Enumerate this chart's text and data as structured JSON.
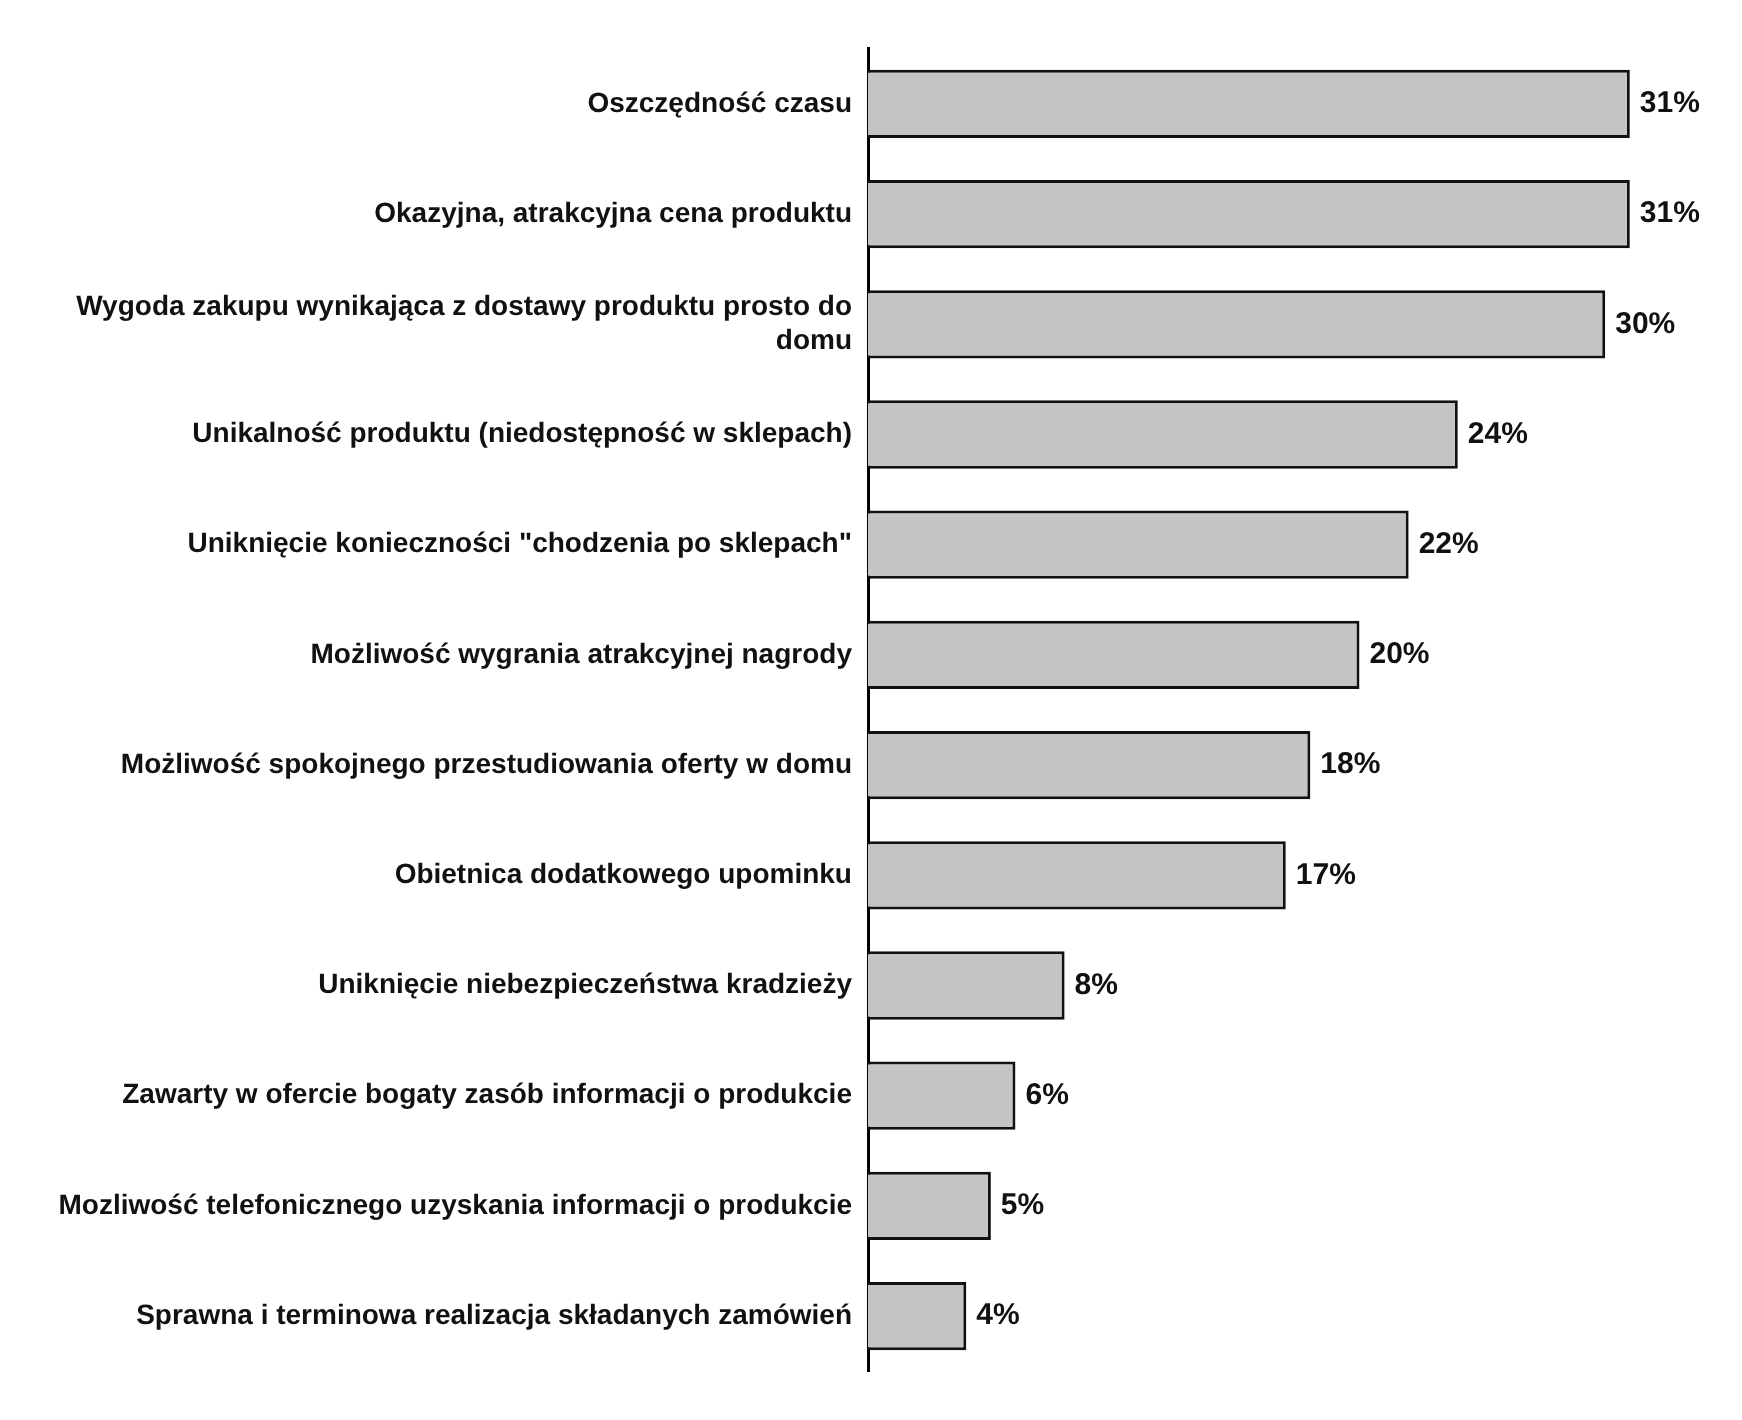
{
  "chart_data": {
    "type": "bar",
    "orientation": "horizontal",
    "categories": [
      "Oszczędność czasu",
      "Okazyjna, atrakcyjna cena produktu",
      "Wygoda zakupu wynikająca z dostawy produktu prosto do domu",
      "Unikalność produktu (niedostępność w sklepach)",
      "Uniknięcie konieczności \"chodzenia po sklepach\"",
      "Możliwość wygrania atrakcyjnej nagrody",
      "Możliwość spokojnego przestudiowania oferty w domu",
      "Obietnica dodatkowego upominku",
      "Uniknięcie niebezpieczeństwa kradzieży",
      "Zawarty w ofercie bogaty zasób informacji o produkcie",
      "Mozliwość telefonicznego uzyskania informacji o produkcie",
      "Sprawna i terminowa realizacja składanych zamówień"
    ],
    "values": [
      31,
      31,
      30,
      24,
      22,
      20,
      18,
      17,
      8,
      6,
      5,
      4
    ],
    "value_labels": [
      "31%",
      "31%",
      "30%",
      "24%",
      "22%",
      "20%",
      "18%",
      "17%",
      "8%",
      "6%",
      "5%",
      "4%"
    ],
    "color": "#c4c4c4"
  }
}
